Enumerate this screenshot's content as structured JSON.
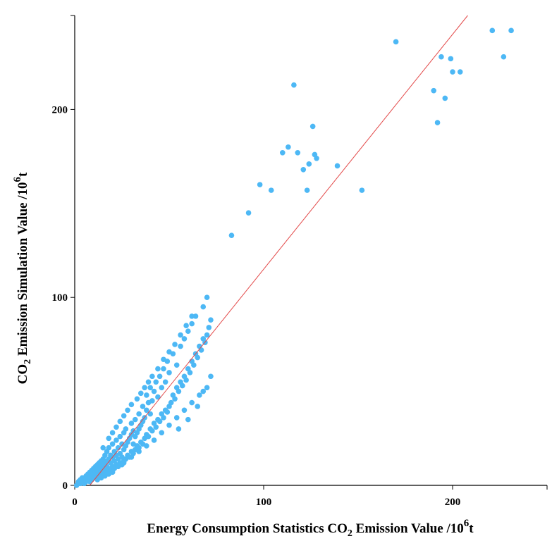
{
  "chart_data": {
    "type": "scatter",
    "title": "",
    "xlabel": {
      "prefix": "Energy Consumption Statistics CO",
      "sub": "2",
      "mid": " Emission Value /10",
      "sup": "6",
      "suffix": "t"
    },
    "ylabel": {
      "prefix": "CO",
      "sub": "2",
      "mid": " Emission Simulation Value /10",
      "sup": "6",
      "suffix": "t"
    },
    "xlim": [
      0,
      250
    ],
    "ylim": [
      0,
      250
    ],
    "xticks": [
      0,
      100,
      200
    ],
    "yticks": [
      0,
      100,
      200
    ],
    "xtick_labels": [
      "0",
      "100",
      "200"
    ],
    "ytick_labels": [
      "0",
      "100",
      "200"
    ],
    "fit_line": {
      "x": [
        8,
        208
      ],
      "y": [
        0,
        250
      ],
      "color": "#e34a4a"
    },
    "series": [
      {
        "name": "provinces",
        "color": "#4db8f5",
        "points": [
          [
            1,
            0
          ],
          [
            2,
            1
          ],
          [
            2,
            2
          ],
          [
            3,
            1
          ],
          [
            3,
            3
          ],
          [
            4,
            2
          ],
          [
            4,
            4
          ],
          [
            5,
            1
          ],
          [
            5,
            3
          ],
          [
            6,
            2
          ],
          [
            6,
            5
          ],
          [
            7,
            3
          ],
          [
            7,
            6
          ],
          [
            8,
            2
          ],
          [
            8,
            4
          ],
          [
            8,
            7
          ],
          [
            9,
            3
          ],
          [
            9,
            5
          ],
          [
            9,
            8
          ],
          [
            10,
            4
          ],
          [
            10,
            6
          ],
          [
            10,
            9
          ],
          [
            11,
            5
          ],
          [
            11,
            7
          ],
          [
            11,
            10
          ],
          [
            12,
            3
          ],
          [
            12,
            6
          ],
          [
            12,
            8
          ],
          [
            12,
            11
          ],
          [
            13,
            5
          ],
          [
            13,
            9
          ],
          [
            13,
            12
          ],
          [
            14,
            4
          ],
          [
            14,
            7
          ],
          [
            14,
            10
          ],
          [
            14,
            13
          ],
          [
            15,
            6
          ],
          [
            15,
            8
          ],
          [
            15,
            11
          ],
          [
            15,
            14
          ],
          [
            16,
            5
          ],
          [
            16,
            9
          ],
          [
            16,
            12
          ],
          [
            16,
            16
          ],
          [
            17,
            7
          ],
          [
            17,
            10
          ],
          [
            17,
            13
          ],
          [
            17,
            18
          ],
          [
            18,
            6
          ],
          [
            18,
            9
          ],
          [
            18,
            14
          ],
          [
            18,
            20
          ],
          [
            19,
            8
          ],
          [
            19,
            12
          ],
          [
            19,
            16
          ],
          [
            20,
            7
          ],
          [
            20,
            10
          ],
          [
            20,
            15
          ],
          [
            20,
            22
          ],
          [
            21,
            9
          ],
          [
            21,
            13
          ],
          [
            21,
            18
          ],
          [
            22,
            11
          ],
          [
            22,
            16
          ],
          [
            22,
            24
          ],
          [
            23,
            10
          ],
          [
            23,
            14
          ],
          [
            23,
            20
          ],
          [
            24,
            12
          ],
          [
            24,
            17
          ],
          [
            24,
            26
          ],
          [
            25,
            11
          ],
          [
            25,
            15
          ],
          [
            25,
            22
          ],
          [
            26,
            13
          ],
          [
            26,
            19
          ],
          [
            26,
            28
          ],
          [
            27,
            14
          ],
          [
            27,
            21
          ],
          [
            27,
            30
          ],
          [
            28,
            16
          ],
          [
            28,
            23
          ],
          [
            29,
            15
          ],
          [
            29,
            25
          ],
          [
            30,
            18
          ],
          [
            30,
            27
          ],
          [
            30,
            33
          ],
          [
            31,
            17
          ],
          [
            31,
            22
          ],
          [
            31,
            29
          ],
          [
            32,
            19
          ],
          [
            32,
            26
          ],
          [
            32,
            35
          ],
          [
            33,
            21
          ],
          [
            33,
            28
          ],
          [
            34,
            20
          ],
          [
            34,
            30
          ],
          [
            34,
            38
          ],
          [
            35,
            23
          ],
          [
            35,
            32
          ],
          [
            36,
            22
          ],
          [
            36,
            34
          ],
          [
            36,
            42
          ],
          [
            37,
            25
          ],
          [
            37,
            36
          ],
          [
            38,
            27
          ],
          [
            38,
            40
          ],
          [
            38,
            48
          ],
          [
            39,
            26
          ],
          [
            39,
            44
          ],
          [
            40,
            30
          ],
          [
            40,
            38
          ],
          [
            40,
            52
          ],
          [
            41,
            29
          ],
          [
            41,
            45
          ],
          [
            42,
            33
          ],
          [
            42,
            50
          ],
          [
            43,
            31
          ],
          [
            43,
            55
          ],
          [
            44,
            35
          ],
          [
            44,
            47
          ],
          [
            45,
            34
          ],
          [
            45,
            58
          ],
          [
            46,
            38
          ],
          [
            46,
            52
          ],
          [
            47,
            36
          ],
          [
            47,
            62
          ],
          [
            48,
            40
          ],
          [
            48,
            55
          ],
          [
            49,
            39
          ],
          [
            49,
            66
          ],
          [
            50,
            42
          ],
          [
            50,
            60
          ],
          [
            51,
            44
          ],
          [
            52,
            48
          ],
          [
            52,
            70
          ],
          [
            53,
            46
          ],
          [
            54,
            52
          ],
          [
            54,
            64
          ],
          [
            55,
            50
          ],
          [
            56,
            55
          ],
          [
            56,
            74
          ],
          [
            57,
            53
          ],
          [
            58,
            58
          ],
          [
            58,
            78
          ],
          [
            59,
            56
          ],
          [
            60,
            62
          ],
          [
            60,
            82
          ],
          [
            61,
            60
          ],
          [
            62,
            66
          ],
          [
            62,
            86
          ],
          [
            63,
            64
          ],
          [
            64,
            70
          ],
          [
            64,
            90
          ],
          [
            65,
            68
          ],
          [
            66,
            74
          ],
          [
            67,
            72
          ],
          [
            68,
            78
          ],
          [
            68,
            95
          ],
          [
            69,
            76
          ],
          [
            70,
            80
          ],
          [
            70,
            100
          ],
          [
            71,
            84
          ],
          [
            72,
            88
          ],
          [
            15,
            20
          ],
          [
            18,
            25
          ],
          [
            20,
            28
          ],
          [
            22,
            31
          ],
          [
            24,
            34
          ],
          [
            26,
            37
          ],
          [
            28,
            40
          ],
          [
            30,
            43
          ],
          [
            33,
            46
          ],
          [
            35,
            49
          ],
          [
            37,
            52
          ],
          [
            39,
            55
          ],
          [
            41,
            58
          ],
          [
            44,
            62
          ],
          [
            47,
            67
          ],
          [
            50,
            71
          ],
          [
            53,
            75
          ],
          [
            56,
            80
          ],
          [
            59,
            85
          ],
          [
            62,
            90
          ],
          [
            26,
            12
          ],
          [
            30,
            15
          ],
          [
            34,
            18
          ],
          [
            38,
            21
          ],
          [
            42,
            24
          ],
          [
            46,
            28
          ],
          [
            50,
            32
          ],
          [
            54,
            36
          ],
          [
            58,
            40
          ],
          [
            62,
            44
          ],
          [
            66,
            48
          ],
          [
            70,
            52
          ],
          [
            55,
            30
          ],
          [
            60,
            35
          ],
          [
            65,
            42
          ],
          [
            68,
            50
          ],
          [
            72,
            58
          ],
          [
            83,
            133
          ],
          [
            92,
            145
          ],
          [
            98,
            160
          ],
          [
            104,
            157
          ],
          [
            110,
            177
          ],
          [
            113,
            180
          ],
          [
            118,
            177
          ],
          [
            121,
            168
          ],
          [
            123,
            157
          ],
          [
            124,
            171
          ],
          [
            126,
            191
          ],
          [
            127,
            176
          ],
          [
            128,
            174
          ],
          [
            116,
            213
          ],
          [
            139,
            170
          ],
          [
            152,
            157
          ],
          [
            170,
            236
          ],
          [
            190,
            210
          ],
          [
            192,
            193
          ],
          [
            194,
            228
          ],
          [
            196,
            206
          ],
          [
            199,
            227
          ],
          [
            200,
            220
          ],
          [
            204,
            220
          ],
          [
            221,
            242
          ],
          [
            227,
            228
          ],
          [
            231,
            242
          ]
        ]
      }
    ]
  }
}
